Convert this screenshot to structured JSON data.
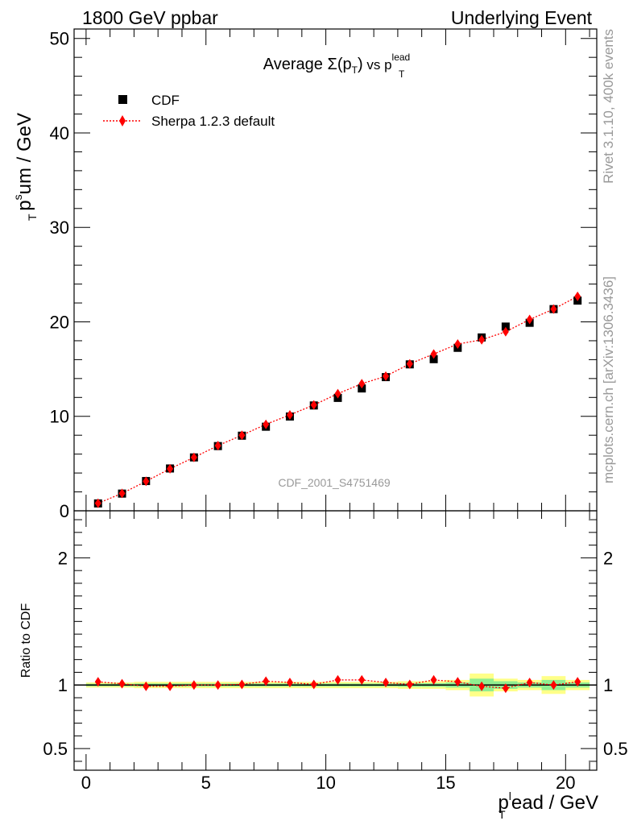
{
  "header": {
    "left": "1800 GeV ppbar",
    "right": "Underlying Event"
  },
  "side_labels": {
    "rivet": "Rivet 3.1.10,  400k events",
    "mcplots": "mcplots.cern.ch [arXiv:1306.3436]"
  },
  "analysis_id": "CDF_2001_S4751469",
  "chart_data": [
    {
      "type": "scatter",
      "title_main": "Average ",
      "title_sigma": "Σ(p",
      "title_sigma_sub": "T",
      "title_sigma_close": ")",
      "title_vs": " vs p",
      "title_vs_sub": "T",
      "title_vs_sup": "lead",
      "ylabel_main": "p",
      "ylabel_sup": "s",
      "ylabel_sub": "T",
      "ylabel_rest": "um / GeV",
      "xlim": [
        -0.5,
        21.3
      ],
      "ylim": [
        0,
        51
      ],
      "y_ticks": [
        0,
        10,
        20,
        30,
        40,
        50
      ],
      "y_tick_labels": [
        "0",
        "10",
        "20",
        "30",
        "40",
        "50"
      ],
      "legend_position": "top-left",
      "series": [
        {
          "name": "CDF",
          "marker": "square",
          "color": "#000000",
          "x": [
            0.5,
            1.5,
            2.5,
            3.5,
            4.5,
            5.5,
            6.5,
            7.5,
            8.5,
            9.5,
            10.5,
            11.5,
            12.5,
            13.5,
            14.5,
            15.5,
            16.5,
            17.5,
            18.5,
            19.5,
            20.5
          ],
          "y": [
            0.78,
            1.82,
            3.15,
            4.48,
            5.65,
            6.85,
            7.95,
            8.9,
            9.98,
            11.15,
            11.95,
            12.95,
            14.15,
            15.5,
            16.05,
            17.25,
            18.35,
            19.5,
            19.9,
            21.35,
            22.25
          ]
        },
        {
          "name": "Sherpa 1.2.3 default",
          "marker": "diamond",
          "color": "#ff0000",
          "x": [
            0.5,
            1.5,
            2.5,
            3.5,
            4.5,
            5.5,
            6.5,
            7.5,
            8.5,
            9.5,
            10.5,
            11.5,
            12.5,
            13.5,
            14.5,
            15.5,
            16.5,
            17.5,
            18.5,
            19.5,
            20.5
          ],
          "y": [
            0.8,
            1.84,
            3.12,
            4.45,
            5.65,
            6.9,
            8.0,
            9.15,
            10.15,
            11.2,
            12.4,
            13.45,
            14.25,
            15.55,
            16.6,
            17.65,
            18.1,
            18.95,
            20.25,
            21.35,
            22.7
          ]
        }
      ]
    },
    {
      "type": "scatter",
      "ylabel": "Ratio to CDF",
      "xlabel_main": "p",
      "xlabel_sup": "l",
      "xlabel_sub": "T",
      "xlabel_rest": "ead / GeV",
      "xlim": [
        -0.5,
        21.3
      ],
      "ylim": [
        0.33,
        2.37
      ],
      "x_ticks": [
        0,
        5,
        10,
        15,
        20
      ],
      "x_tick_labels": [
        "0",
        "5",
        "10",
        "15",
        "20"
      ],
      "y_ticks": [
        0.5,
        1,
        2
      ],
      "y_tick_labels": [
        "0.5",
        "1",
        "2"
      ],
      "reference_line": 1,
      "band_colors": {
        "stat": "#90ee90",
        "total": "#ffff88"
      },
      "bands": {
        "x": [
          0,
          1,
          2,
          3,
          4,
          5,
          6,
          7,
          8,
          9,
          10,
          11,
          12,
          13,
          14,
          15,
          16,
          17,
          18,
          19,
          20,
          21
        ],
        "stat_half_width": [
          0.01,
          0.01,
          0.012,
          0.012,
          0.012,
          0.012,
          0.012,
          0.012,
          0.012,
          0.012,
          0.012,
          0.012,
          0.012,
          0.015,
          0.015,
          0.02,
          0.05,
          0.03,
          0.02,
          0.04,
          0.02
        ],
        "total_half_width": [
          0.02,
          0.02,
          0.025,
          0.025,
          0.025,
          0.025,
          0.025,
          0.025,
          0.025,
          0.025,
          0.025,
          0.025,
          0.025,
          0.03,
          0.03,
          0.04,
          0.09,
          0.05,
          0.04,
          0.07,
          0.04
        ]
      },
      "series": [
        {
          "name": "Sherpa 1.2.3 default",
          "marker": "diamond",
          "color": "#ff0000",
          "x": [
            0.5,
            1.5,
            2.5,
            3.5,
            4.5,
            5.5,
            6.5,
            7.5,
            8.5,
            9.5,
            10.5,
            11.5,
            12.5,
            13.5,
            14.5,
            15.5,
            16.5,
            17.5,
            18.5,
            19.5,
            20.5
          ],
          "y": [
            1.025,
            1.01,
            0.99,
            0.99,
            1.0,
            1.0,
            1.005,
            1.03,
            1.02,
            1.005,
            1.04,
            1.04,
            1.02,
            1.005,
            1.04,
            1.025,
            0.99,
            0.975,
            1.02,
            1.0,
            1.025
          ],
          "err": [
            0.01,
            0.01,
            0.01,
            0.01,
            0.01,
            0.01,
            0.01,
            0.01,
            0.01,
            0.01,
            0.015,
            0.015,
            0.015,
            0.015,
            0.02,
            0.02,
            0.02,
            0.02,
            0.03,
            0.03,
            0.03
          ]
        }
      ]
    }
  ]
}
